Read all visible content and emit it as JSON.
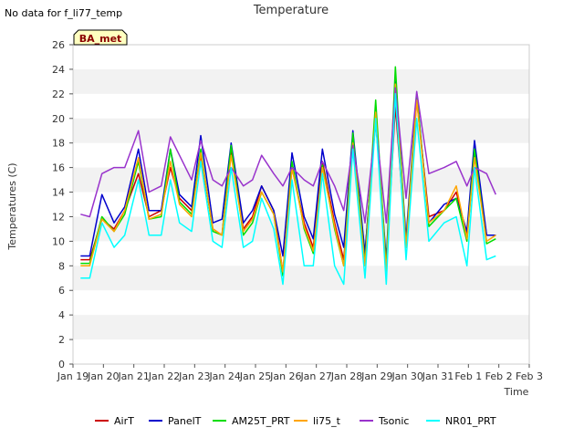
{
  "no_data_text": "No data for f_li77_temp",
  "badge_label": "BA_met",
  "chart_data": {
    "type": "line",
    "title": "Temperature",
    "xlabel": "Time",
    "ylabel": "Temperatures (C)",
    "x_tick_labels": [
      "Jan 19",
      "Jan 20",
      "Jan 21",
      "Jan 22",
      "Jan 23",
      "Jan 24",
      "Jan 25",
      "Jan 26",
      "Jan 27",
      "Jan 28",
      "Jan 29",
      "Jan 30",
      "Jan 31",
      "Feb 1",
      "Feb 2",
      "Feb 3"
    ],
    "xlim": [
      0,
      15
    ],
    "ylim": [
      0,
      26
    ],
    "y_ticks": [
      0,
      2,
      4,
      6,
      8,
      10,
      12,
      14,
      16,
      18,
      20,
      22,
      24,
      26
    ],
    "grid": "horizontal alternating bands",
    "legend_position": "bottom",
    "colors": {
      "band": "#f2f2f2",
      "badge_bg": "#ffffc0"
    },
    "series": [
      {
        "name": "AirT",
        "color": "#cc0000",
        "values": [
          8.5,
          8.5,
          11.8,
          11.0,
          12.5,
          15.5,
          12.0,
          12.5,
          16.0,
          13.5,
          12.5,
          17.0,
          11.0,
          10.5,
          17.5,
          11.0,
          12.0,
          14.5,
          12.5,
          7.5,
          16.0,
          11.5,
          9.5,
          16.5,
          11.5,
          8.5,
          18.0,
          9.0,
          20.0,
          8.0,
          21.0,
          9.5,
          21.5,
          12.0,
          12.5,
          14.0,
          10.5,
          17.0,
          10.5,
          10.5
        ]
      },
      {
        "name": "PanelT",
        "color": "#0000cc",
        "values": [
          8.8,
          8.8,
          13.8,
          11.5,
          12.8,
          17.5,
          12.5,
          12.5,
          17.5,
          13.8,
          12.8,
          18.6,
          11.5,
          11.8,
          18.0,
          11.5,
          12.5,
          14.5,
          12.5,
          8.8,
          17.2,
          12.0,
          10.2,
          17.5,
          12.2,
          9.5,
          19.0,
          9.0,
          20.0,
          8.5,
          23.0,
          10.2,
          22.0,
          11.5,
          13.0,
          13.5,
          10.8,
          18.2,
          10.5,
          10.5
        ]
      },
      {
        "name": "AM25T_PRT",
        "color": "#00dd00",
        "values": [
          8.2,
          8.2,
          12.0,
          10.8,
          12.2,
          16.5,
          11.8,
          12.0,
          17.5,
          13.2,
          12.2,
          17.5,
          10.8,
          10.5,
          17.8,
          10.5,
          11.5,
          14.0,
          12.2,
          7.2,
          16.5,
          11.0,
          9.0,
          16.2,
          11.0,
          8.0,
          18.8,
          8.2,
          21.5,
          7.8,
          24.2,
          9.5,
          22.0,
          11.2,
          12.5,
          13.5,
          10.0,
          17.5,
          9.8,
          10.2
        ]
      },
      {
        "name": "li75_t",
        "color": "#ffa500",
        "values": [
          8.0,
          8.0,
          11.8,
          10.8,
          12.5,
          16.8,
          11.8,
          12.2,
          16.5,
          13.0,
          12.0,
          17.2,
          11.0,
          10.5,
          17.0,
          10.8,
          11.8,
          14.0,
          12.2,
          7.5,
          16.0,
          11.2,
          9.2,
          16.0,
          11.2,
          8.0,
          18.0,
          8.0,
          20.5,
          7.5,
          22.8,
          9.5,
          21.5,
          11.5,
          12.5,
          14.5,
          10.2,
          16.8,
          10.0,
          10.5
        ]
      },
      {
        "name": "Tsonic",
        "color": "#9933cc",
        "values": [
          12.2,
          12.0,
          15.5,
          16.0,
          16.0,
          19.0,
          14.0,
          14.5,
          18.5,
          17.0,
          15.0,
          18.2,
          15.0,
          14.5,
          16.0,
          14.5,
          15.0,
          17.0,
          15.5,
          14.5,
          16.0,
          15.0,
          14.5,
          16.5,
          14.5,
          12.5,
          17.8,
          11.5,
          19.5,
          11.5,
          22.5,
          13.5,
          22.2,
          15.5,
          16.0,
          16.5,
          14.5,
          16.0,
          15.5,
          13.8
        ]
      },
      {
        "name": "NR01_PRT",
        "color": "#00ffff",
        "values": [
          7.0,
          7.0,
          11.5,
          9.5,
          10.5,
          15.0,
          10.5,
          10.5,
          15.0,
          11.5,
          10.8,
          16.5,
          10.0,
          9.5,
          16.0,
          9.5,
          10.0,
          13.5,
          11.0,
          6.5,
          15.0,
          8.0,
          8.0,
          15.5,
          8.0,
          6.5,
          17.5,
          7.0,
          20.0,
          6.5,
          22.0,
          8.5,
          20.0,
          10.0,
          11.5,
          12.0,
          8.0,
          16.0,
          8.5,
          8.8
        ]
      }
    ],
    "x": [
      0.25,
      0.55,
      0.95,
      1.35,
      1.7,
      2.15,
      2.5,
      2.9,
      3.2,
      3.5,
      3.9,
      4.2,
      4.6,
      4.9,
      5.2,
      5.6,
      5.9,
      6.2,
      6.6,
      6.9,
      7.2,
      7.6,
      7.9,
      8.2,
      8.6,
      8.9,
      9.2,
      9.6,
      9.95,
      10.3,
      10.6,
      10.95,
      11.3,
      11.7,
      12.2,
      12.6,
      12.95,
      13.2,
      13.6,
      13.9
    ]
  }
}
